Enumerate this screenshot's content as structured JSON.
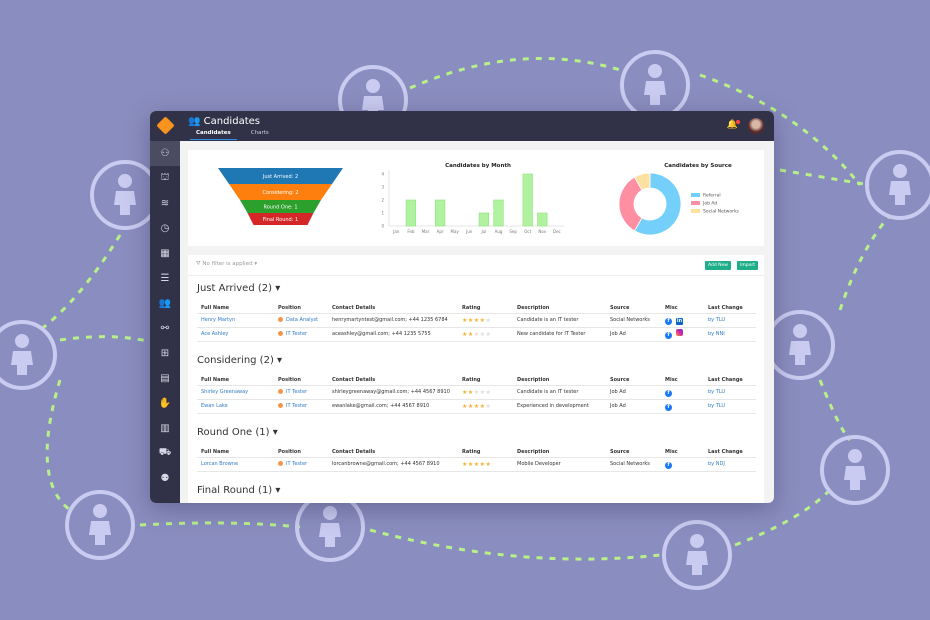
{
  "app": {
    "title": "Candidates",
    "tabs": [
      {
        "label": "Candidates",
        "active": true
      },
      {
        "label": "Charts",
        "active": false
      }
    ]
  },
  "sidebar": {
    "items": [
      "people-icon",
      "bank-icon",
      "layers-icon",
      "clock-icon",
      "calendar-icon",
      "checklist-icon",
      "users-icon",
      "handshake-icon",
      "org-chart-icon",
      "ledger-icon",
      "hand-coin-icon",
      "building-icon",
      "car-icon",
      "team-icon"
    ]
  },
  "funnel": {
    "stages": [
      {
        "label": "Just Arrived: 2",
        "color": "#1f77b4"
      },
      {
        "label": "Considering: 2",
        "color": "#ff7f0e"
      },
      {
        "label": "Round One: 1",
        "color": "#2ca02c"
      },
      {
        "label": "Final Round: 1",
        "color": "#d62728"
      }
    ]
  },
  "chart_data": [
    {
      "type": "bar",
      "title": "Candidates by Month",
      "categories": [
        "Jan",
        "Feb",
        "Mar",
        "Apr",
        "May",
        "Jun",
        "Jul",
        "Aug",
        "Sep",
        "Oct",
        "Nov",
        "Dec"
      ],
      "values": [
        0,
        2,
        0,
        2,
        0,
        0,
        1,
        2,
        0,
        4,
        1,
        0
      ],
      "ylim": [
        0,
        4
      ],
      "yticks": [
        "0",
        "1",
        "2",
        "3",
        "4"
      ],
      "color": "#b0f2a0"
    },
    {
      "type": "pie",
      "title": "Candidates by Source",
      "categories": [
        "Referral",
        "Job Ad",
        "Social Networks"
      ],
      "values": [
        7,
        4,
        1
      ],
      "colors": [
        "#74d0fb",
        "#fe8ea2",
        "#fde1a0"
      ],
      "legend": "right"
    }
  ],
  "toolbar": {
    "filter": "No filter is applied",
    "add_new": "Add New",
    "import": "Import"
  },
  "columns": [
    "Full Name",
    "Position",
    "Contact Details",
    "Rating",
    "Description",
    "Source",
    "Misc",
    "Last Change"
  ],
  "groups": [
    {
      "title": "Just Arrived (2)",
      "rows": [
        {
          "name": "Henry Martyn",
          "position": "Data Analyst",
          "contact": "henrymartyntest@gmail.com; +44 1235 6784",
          "rating": 4,
          "description": "Candidate is an IT tester",
          "source": "Social Networks",
          "misc": [
            "facebook",
            "linkedin"
          ],
          "last": "by TLU"
        },
        {
          "name": "Ace Ashley",
          "position": "IT Tester",
          "contact": "aceashley@gmail.com; +44 1235 5755",
          "rating": 2,
          "description": "New candidate for IT Tester",
          "source": "Job Ad",
          "misc": [
            "facebook",
            "instagram"
          ],
          "last": "by NNI"
        }
      ]
    },
    {
      "title": "Considering (2)",
      "rows": [
        {
          "name": "Shirley Greenaway",
          "position": "IT Tester",
          "contact": "shirleygreenaway@gmail.com; +44 4567 8910",
          "rating": 2,
          "description": "Candidate is an IT tester",
          "source": "Job Ad",
          "misc": [
            "facebook"
          ],
          "last": "by TLU"
        },
        {
          "name": "Ewan Lake",
          "position": "IT Tester",
          "contact": "ewanlake@gmail.com; +44 4567 8910",
          "rating": 4,
          "description": "Experienced in development",
          "source": "Job Ad",
          "misc": [
            "facebook"
          ],
          "last": "by TLU"
        }
      ]
    },
    {
      "title": "Round One (1)",
      "rows": [
        {
          "name": "Lorcan Browne",
          "position": "IT Tester",
          "contact": "lorcanbrowne@gmail.com; +44 4567 8910",
          "rating": 5,
          "description": "Mobile Developer",
          "source": "Social Networks",
          "misc": [
            "facebook"
          ],
          "last": "by NDJ"
        }
      ]
    },
    {
      "title": "Final Round (1)",
      "rows": []
    }
  ]
}
